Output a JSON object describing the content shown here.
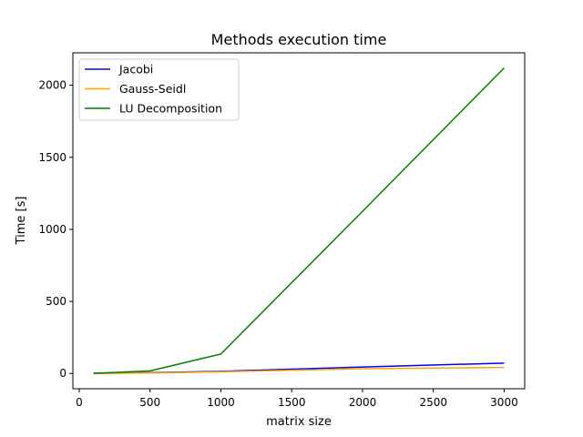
{
  "chart_data": {
    "type": "line",
    "title": "Methods execution time",
    "xlabel": "matrix size",
    "ylabel": "Time [s]",
    "xlim": [
      -45,
      3145
    ],
    "ylim": [
      -106,
      2225
    ],
    "xticks": [
      0,
      500,
      1000,
      1500,
      2000,
      2500,
      3000
    ],
    "yticks": [
      0,
      500,
      1000,
      1500,
      2000
    ],
    "grid": false,
    "legend_position": "top-left",
    "x": [
      100,
      500,
      1000,
      2000,
      3000
    ],
    "series": [
      {
        "name": "Jacobi",
        "color": "#0000ff",
        "values": [
          0.5,
          5,
          15,
          45,
          72
        ]
      },
      {
        "name": "Gauss-Seidl",
        "color": "#ffa500",
        "values": [
          0.3,
          3,
          12,
          33,
          42
        ]
      },
      {
        "name": "LU Decomposition",
        "color": "#008000",
        "values": [
          1,
          18,
          135,
          1125,
          2120
        ]
      }
    ]
  }
}
